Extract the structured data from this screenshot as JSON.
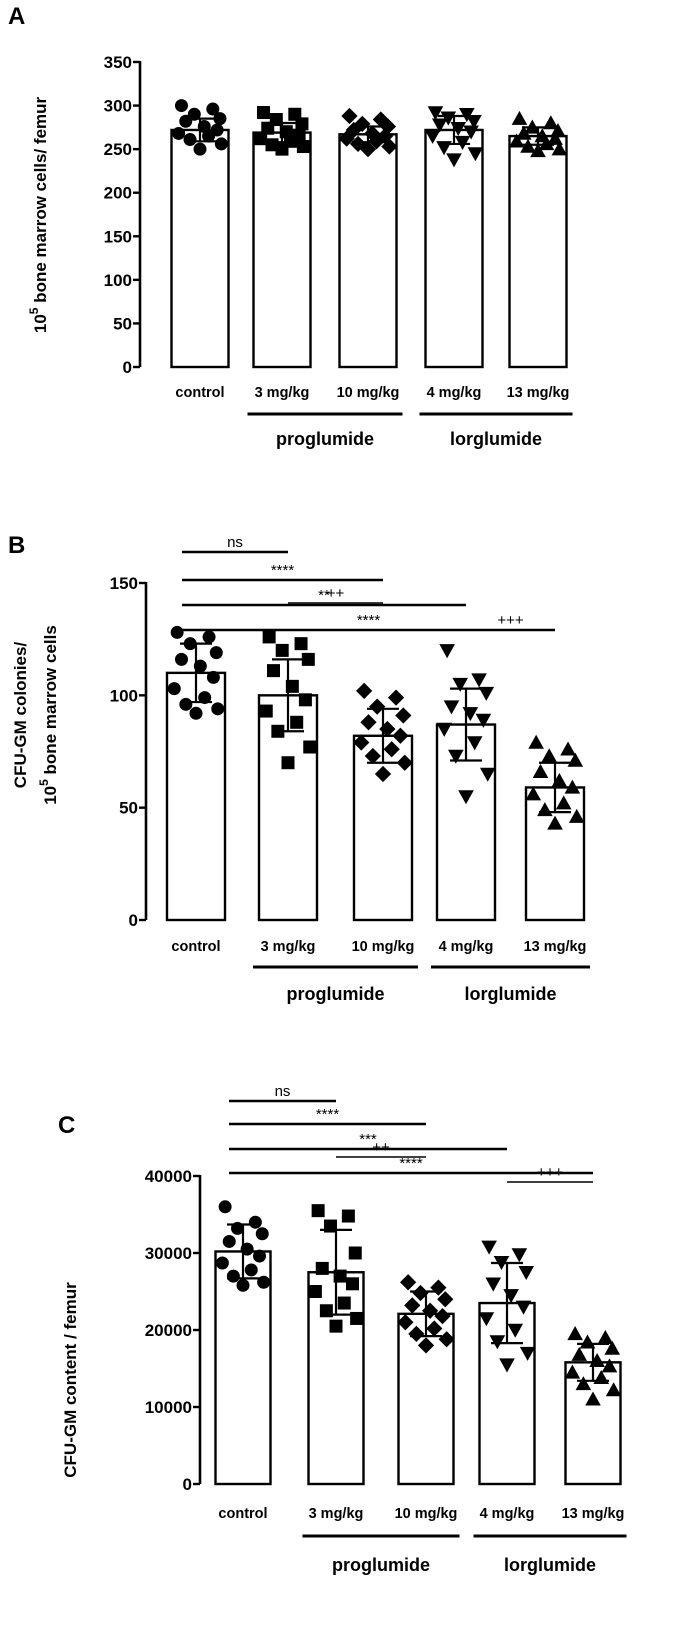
{
  "shared": {
    "categories": [
      "control",
      "3 mg/kg",
      "10 mg/kg",
      "4 mg/kg",
      "13 mg/kg"
    ],
    "groups": [
      {
        "label": "proglumide",
        "from": 1,
        "to": 2
      },
      {
        "label": "lorglumide",
        "from": 3,
        "to": 4
      }
    ],
    "markers": [
      "circle",
      "square",
      "diamond",
      "triangle-down",
      "triangle-up"
    ],
    "colors": {
      "ink": "#000000",
      "bar_fill": "#ffffff"
    }
  },
  "chart_data": [
    {
      "panel": "A",
      "type": "bar",
      "ylabel_main": "10",
      "ylabel_sup": "5",
      "ylabel_rest": " bone marrow cells/ femur",
      "ylim": [
        0,
        350
      ],
      "yticks": [
        0,
        50,
        100,
        150,
        200,
        250,
        300,
        350
      ],
      "ytick_labels": [
        "0",
        "50",
        "100",
        "150",
        "200",
        "250",
        "300",
        "350"
      ],
      "values": [
        272,
        269,
        267,
        272,
        265
      ],
      "sd": [
        13,
        11,
        9,
        16,
        10
      ],
      "points": [
        [
          300,
          296,
          290,
          285,
          282,
          276,
          272,
          268,
          265,
          261,
          256,
          250
        ],
        [
          292,
          290,
          284,
          279,
          274,
          270,
          266,
          262,
          259,
          255,
          253,
          250
        ],
        [
          288,
          284,
          279,
          276,
          272,
          268,
          265,
          262,
          259,
          256,
          253,
          250
        ],
        [
          292,
          290,
          286,
          282,
          278,
          274,
          270,
          265,
          258,
          252,
          245,
          238
        ],
        [
          285,
          280,
          275,
          271,
          268,
          265,
          262,
          259,
          256,
          253,
          250,
          248
        ]
      ],
      "significance": []
    },
    {
      "panel": "B",
      "type": "bar",
      "ylabel_line1": "CFU-GM colonies/",
      "ylabel2_main": "10",
      "ylabel2_sup": "5",
      "ylabel2_rest": " bone marrow cells",
      "ylim": [
        0,
        160
      ],
      "yticks": [
        0,
        50,
        100,
        150
      ],
      "ytick_labels": [
        "0",
        "50",
        "100",
        "150"
      ],
      "values": [
        110,
        100,
        82,
        87,
        59
      ],
      "sd": [
        13,
        16,
        12,
        16,
        11
      ],
      "points": [
        [
          128,
          126,
          123,
          119,
          116,
          113,
          108,
          103,
          99,
          96,
          94,
          92
        ],
        [
          126,
          123,
          120,
          116,
          111,
          104,
          98,
          93,
          88,
          84,
          77,
          70
        ],
        [
          102,
          99,
          95,
          91,
          88,
          85,
          82,
          79,
          76,
          73,
          70,
          65
        ],
        [
          120,
          107,
          105,
          101,
          95,
          92,
          89,
          85,
          79,
          73,
          65,
          55
        ],
        [
          79,
          76,
          73,
          71,
          66,
          62,
          59,
          56,
          52,
          49,
          46,
          43
        ]
      ],
      "significance": [
        {
          "from": 0,
          "to": 1,
          "label": "ns"
        },
        {
          "from": 0,
          "to": 2,
          "label": "****"
        },
        {
          "from": 0,
          "to": 3,
          "label": "**"
        },
        {
          "from": 0,
          "to": 4,
          "label": "****"
        },
        {
          "from": 1,
          "to": 2,
          "label": "++"
        },
        {
          "from": 3,
          "to": 4,
          "label": "+++"
        }
      ]
    },
    {
      "panel": "C",
      "type": "bar",
      "ylabel": "CFU-GM content / femur",
      "ylim": [
        0,
        40000
      ],
      "yticks": [
        0,
        10000,
        20000,
        30000,
        40000
      ],
      "ytick_labels": [
        "0",
        "10000",
        "20000",
        "30000",
        "40000"
      ],
      "values": [
        30200,
        27500,
        22100,
        23500,
        15800
      ],
      "sd": [
        3500,
        5500,
        2900,
        5200,
        2400
      ],
      "points": [
        [
          36000,
          34000,
          33200,
          32500,
          31500,
          30500,
          29600,
          28700,
          27800,
          27000,
          26200,
          25800
        ],
        [
          35500,
          34800,
          33500,
          30000,
          28000,
          27000,
          26000,
          25000,
          23500,
          22500,
          21500,
          20500
        ],
        [
          26200,
          25500,
          24800,
          24000,
          23200,
          22500,
          21800,
          21000,
          20200,
          19500,
          18800,
          18000
        ],
        [
          30800,
          29800,
          28800,
          27500,
          26000,
          24500,
          23000,
          21500,
          20000,
          18500,
          17000,
          15500
        ],
        [
          19500,
          19000,
          18400,
          17600,
          16800,
          16000,
          15300,
          14500,
          13800,
          13000,
          12200,
          11000
        ]
      ],
      "significance": [
        {
          "from": 0,
          "to": 1,
          "label": "ns"
        },
        {
          "from": 0,
          "to": 2,
          "label": "****"
        },
        {
          "from": 0,
          "to": 3,
          "label": "***"
        },
        {
          "from": 0,
          "to": 4,
          "label": "****"
        },
        {
          "from": 1,
          "to": 2,
          "label": "++"
        },
        {
          "from": 3,
          "to": 4,
          "label": "+++"
        }
      ]
    }
  ]
}
